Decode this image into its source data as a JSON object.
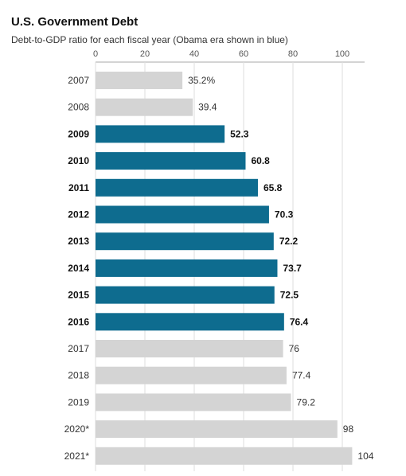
{
  "chart_data": {
    "type": "bar",
    "orientation": "horizontal",
    "title": "U.S. Government Debt",
    "subtitle": "Debt-to-GDP ratio for each fiscal year (Obama era shown in blue)",
    "categories": [
      "2007",
      "2008",
      "2009",
      "2010",
      "2011",
      "2012",
      "2013",
      "2014",
      "2015",
      "2016",
      "2017",
      "2018",
      "2019",
      "2020*",
      "2021*"
    ],
    "values": [
      35.2,
      39.4,
      52.3,
      60.8,
      65.8,
      70.3,
      72.2,
      73.7,
      72.5,
      76.4,
      76,
      77.4,
      79.2,
      98,
      104
    ],
    "value_labels": [
      "35.2%",
      "39.4",
      "52.3",
      "60.8",
      "65.8",
      "70.3",
      "72.2",
      "73.7",
      "72.5",
      "76.4",
      "76",
      "77.4",
      "79.2",
      "98",
      "104"
    ],
    "highlighted": [
      false,
      false,
      true,
      true,
      true,
      true,
      true,
      true,
      true,
      true,
      false,
      false,
      false,
      false,
      false
    ],
    "xticks": [
      0,
      20,
      40,
      60,
      80,
      100
    ],
    "xlim": [
      0,
      108
    ],
    "grid": true,
    "colors": {
      "highlight": "#0e6c8f",
      "default": "#d4d4d4",
      "grid": "#dddddd"
    }
  }
}
